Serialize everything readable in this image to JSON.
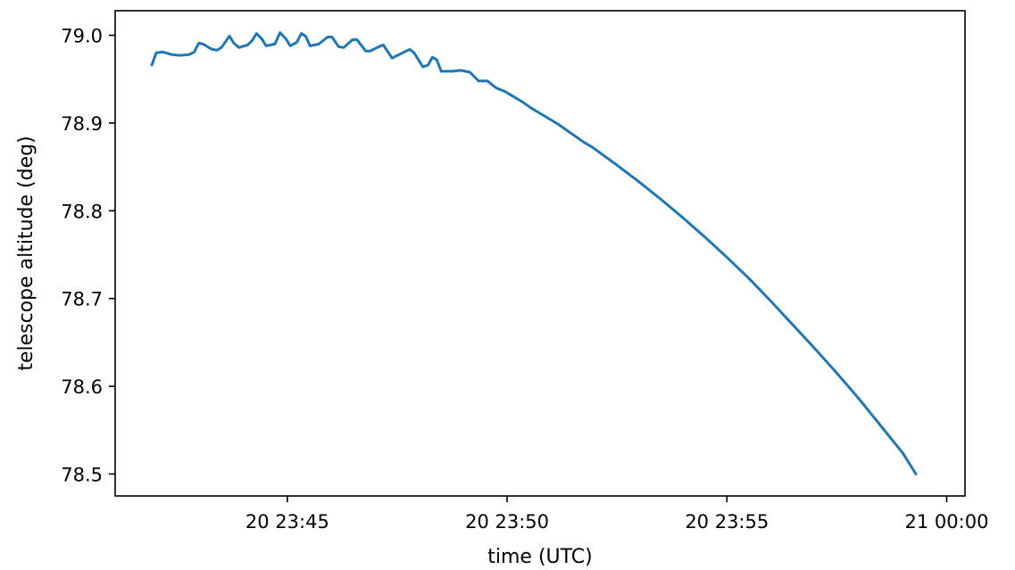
{
  "chart_data": {
    "type": "line",
    "title": "",
    "xlabel": "time (UTC)",
    "ylabel": "telescope altitude (deg)",
    "x_unit": "minutes",
    "xlim": [
      "20 23:41:05",
      "21 00:00:25"
    ],
    "ylim": [
      78.475,
      79.028
    ],
    "grid": false,
    "x_ticks": [
      {
        "value": "20 23:45:00",
        "label": "20 23:45"
      },
      {
        "value": "20 23:50:00",
        "label": "20 23:50"
      },
      {
        "value": "20 23:55:00",
        "label": "20 23:55"
      },
      {
        "value": "21 00:00:00",
        "label": "21 00:00"
      }
    ],
    "y_ticks": [
      {
        "value": 78.5,
        "label": "78.5"
      },
      {
        "value": 78.6,
        "label": "78.6"
      },
      {
        "value": 78.7,
        "label": "78.7"
      },
      {
        "value": 78.8,
        "label": "78.8"
      },
      {
        "value": 78.9,
        "label": "78.9"
      },
      {
        "value": 79.0,
        "label": "79.0"
      }
    ],
    "series": [
      {
        "color": "#1f77b4",
        "points": [
          [
            "20 23:41:55",
            78.966
          ],
          [
            "20 23:42:01",
            78.98
          ],
          [
            "20 23:42:10",
            78.981
          ],
          [
            "20 23:42:22",
            78.978
          ],
          [
            "20 23:42:34",
            78.977
          ],
          [
            "20 23:42:46",
            78.978
          ],
          [
            "20 23:42:53",
            78.981
          ],
          [
            "20 23:42:59",
            78.991
          ],
          [
            "20 23:43:05",
            78.99
          ],
          [
            "20 23:43:17",
            78.984
          ],
          [
            "20 23:43:24",
            78.983
          ],
          [
            "20 23:43:30",
            78.986
          ],
          [
            "20 23:43:41",
            78.999
          ],
          [
            "20 23:43:47",
            78.991
          ],
          [
            "20 23:43:54",
            78.986
          ],
          [
            "20 23:44:06",
            78.989
          ],
          [
            "20 23:44:12",
            78.994
          ],
          [
            "20 23:44:18",
            79.002
          ],
          [
            "20 23:44:25",
            78.996
          ],
          [
            "20 23:44:31",
            78.988
          ],
          [
            "20 23:44:43",
            78.99
          ],
          [
            "20 23:44:50",
            79.003
          ],
          [
            "20 23:44:58",
            78.996
          ],
          [
            "20 23:45:04",
            78.988
          ],
          [
            "20 23:45:13",
            78.992
          ],
          [
            "20 23:45:19",
            79.002
          ],
          [
            "20 23:45:25",
            78.999
          ],
          [
            "20 23:45:31",
            78.988
          ],
          [
            "20 23:45:43",
            78.99
          ],
          [
            "20 23:45:55",
            78.998
          ],
          [
            "20 23:46:01",
            78.998
          ],
          [
            "20 23:46:10",
            78.987
          ],
          [
            "20 23:46:17",
            78.986
          ],
          [
            "20 23:46:29",
            78.995
          ],
          [
            "20 23:46:35",
            78.995
          ],
          [
            "20 23:46:47",
            78.982
          ],
          [
            "20 23:46:53",
            78.982
          ],
          [
            "20 23:47:05",
            78.987
          ],
          [
            "20 23:47:11",
            78.989
          ],
          [
            "20 23:47:23",
            78.974
          ],
          [
            "20 23:47:35",
            78.979
          ],
          [
            "20 23:47:47",
            78.984
          ],
          [
            "20 23:47:53",
            78.98
          ],
          [
            "20 23:48:05",
            78.964
          ],
          [
            "20 23:48:12",
            78.966
          ],
          [
            "20 23:48:18",
            78.975
          ],
          [
            "20 23:48:24",
            78.972
          ],
          [
            "20 23:48:30",
            78.959
          ],
          [
            "20 23:48:45",
            78.959
          ],
          [
            "20 23:48:57",
            78.96
          ],
          [
            "20 23:49:09",
            78.958
          ],
          [
            "20 23:49:21",
            78.948
          ],
          [
            "20 23:49:33",
            78.948
          ],
          [
            "20 23:49:45",
            78.94
          ],
          [
            "20 23:49:57",
            78.936
          ],
          [
            "20 23:50:09",
            78.93
          ],
          [
            "20 23:50:21",
            78.924
          ],
          [
            "20 23:50:33",
            78.917
          ],
          [
            "20 23:50:45",
            78.911
          ],
          [
            "20 23:50:57",
            78.905
          ],
          [
            "20 23:51:09",
            78.899
          ],
          [
            "20 23:51:21",
            78.892
          ],
          [
            "20 23:51:33",
            78.885
          ],
          [
            "20 23:51:45",
            78.878
          ],
          [
            "20 23:51:57",
            78.872
          ],
          [
            "20 23:52:30",
            78.852
          ],
          [
            "20 23:53:00",
            78.833
          ],
          [
            "20 23:53:30",
            78.813
          ],
          [
            "20 23:54:00",
            78.792
          ],
          [
            "20 23:54:30",
            78.77
          ],
          [
            "20 23:55:00",
            78.747
          ],
          [
            "20 23:55:30",
            78.723
          ],
          [
            "20 23:56:00",
            78.697
          ],
          [
            "20 23:56:30",
            78.67
          ],
          [
            "20 23:57:00",
            78.643
          ],
          [
            "20 23:57:30",
            78.615
          ],
          [
            "20 23:58:00",
            78.586
          ],
          [
            "20 23:58:30",
            78.555
          ],
          [
            "20 23:59:00",
            78.524
          ],
          [
            "20 23:59:18",
            78.5
          ]
        ]
      }
    ]
  }
}
